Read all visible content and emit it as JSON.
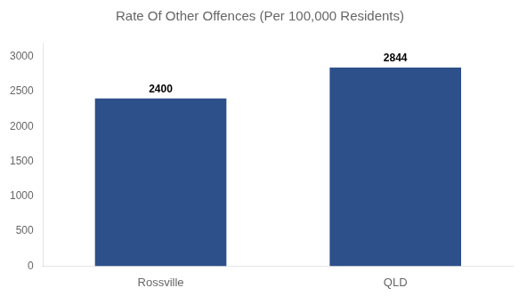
{
  "chart_data": {
    "type": "bar",
    "title": "Rate Of Other Offences (Per 100,000 Residents)",
    "categories": [
      "Rossville",
      "QLD"
    ],
    "values": [
      2400,
      2844
    ],
    "color": "#2d4f8a",
    "ylim": [
      0,
      3200
    ],
    "yticks": [
      0,
      500,
      1000,
      1500,
      2000,
      2500,
      3000
    ],
    "grid": false,
    "data_labels": true
  }
}
